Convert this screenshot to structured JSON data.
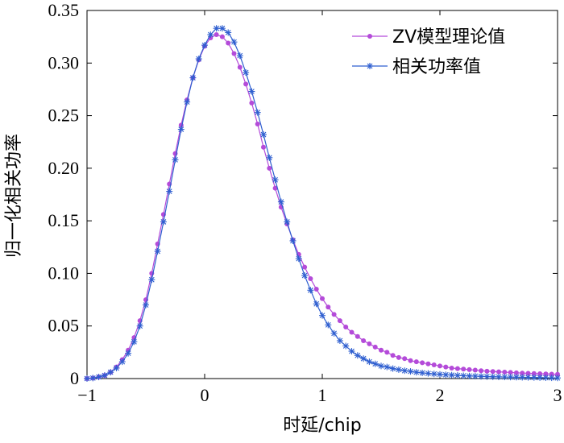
{
  "chart_data": {
    "type": "line",
    "xlabel": "时延/chip",
    "ylabel": "归一化相关功率",
    "xlim": [
      -1,
      3
    ],
    "ylim": [
      0,
      0.35
    ],
    "xticks": [
      -1,
      0,
      1,
      2,
      3
    ],
    "xtick_labels": [
      "−1",
      "0",
      "1",
      "2",
      "3"
    ],
    "yticks": [
      0,
      0.05,
      0.1,
      0.15,
      0.2,
      0.25,
      0.3,
      0.35
    ],
    "ytick_labels": [
      "0",
      "0.05",
      "0.10",
      "0.15",
      "0.20",
      "0.25",
      "0.30",
      "0.35"
    ],
    "grid": false,
    "legend_position": "top-right",
    "series": [
      {
        "name": "ZV模型理论值",
        "color": "#b44bd9",
        "marker": "dot",
        "x": [
          -1.0,
          -0.95,
          -0.9,
          -0.85,
          -0.8,
          -0.75,
          -0.7,
          -0.65,
          -0.6,
          -0.55,
          -0.5,
          -0.45,
          -0.4,
          -0.35,
          -0.3,
          -0.25,
          -0.2,
          -0.15,
          -0.1,
          -0.05,
          0.0,
          0.05,
          0.1,
          0.15,
          0.2,
          0.25,
          0.3,
          0.35,
          0.4,
          0.45,
          0.5,
          0.55,
          0.6,
          0.65,
          0.7,
          0.75,
          0.8,
          0.85,
          0.9,
          0.95,
          1.0,
          1.05,
          1.1,
          1.15,
          1.2,
          1.25,
          1.3,
          1.35,
          1.4,
          1.45,
          1.5,
          1.55,
          1.6,
          1.65,
          1.7,
          1.75,
          1.8,
          1.85,
          1.9,
          1.95,
          2.0,
          2.05,
          2.1,
          2.15,
          2.2,
          2.25,
          2.3,
          2.35,
          2.4,
          2.45,
          2.5,
          2.55,
          2.6,
          2.65,
          2.7,
          2.75,
          2.8,
          2.85,
          2.9,
          2.95,
          3.0
        ],
        "y": [
          0.0,
          0.0005,
          0.0015,
          0.003,
          0.006,
          0.011,
          0.018,
          0.027,
          0.039,
          0.055,
          0.075,
          0.1,
          0.128,
          0.156,
          0.185,
          0.214,
          0.241,
          0.265,
          0.286,
          0.303,
          0.316,
          0.324,
          0.327,
          0.325,
          0.319,
          0.309,
          0.296,
          0.28,
          0.262,
          0.242,
          0.22,
          0.2,
          0.181,
          0.163,
          0.147,
          0.132,
          0.118,
          0.106,
          0.095,
          0.085,
          0.076,
          0.068,
          0.061,
          0.055,
          0.049,
          0.044,
          0.04,
          0.036,
          0.033,
          0.03,
          0.027,
          0.025,
          0.022,
          0.02,
          0.019,
          0.017,
          0.016,
          0.015,
          0.014,
          0.013,
          0.012,
          0.011,
          0.01,
          0.0095,
          0.009,
          0.0085,
          0.008,
          0.0075,
          0.007,
          0.0067,
          0.0064,
          0.0061,
          0.0058,
          0.0055,
          0.0052,
          0.005,
          0.0048,
          0.0046,
          0.0044,
          0.0042,
          0.004
        ]
      },
      {
        "name": "相关功率值",
        "color": "#2f5fd0",
        "marker": "star",
        "x": [
          -1.0,
          -0.95,
          -0.9,
          -0.85,
          -0.8,
          -0.75,
          -0.7,
          -0.65,
          -0.6,
          -0.55,
          -0.5,
          -0.45,
          -0.4,
          -0.35,
          -0.3,
          -0.25,
          -0.2,
          -0.15,
          -0.1,
          -0.05,
          0.0,
          0.05,
          0.1,
          0.15,
          0.2,
          0.25,
          0.3,
          0.35,
          0.4,
          0.45,
          0.5,
          0.55,
          0.6,
          0.65,
          0.7,
          0.75,
          0.8,
          0.85,
          0.9,
          0.95,
          1.0,
          1.05,
          1.1,
          1.15,
          1.2,
          1.25,
          1.3,
          1.35,
          1.4,
          1.45,
          1.5,
          1.55,
          1.6,
          1.65,
          1.7,
          1.75,
          1.8,
          1.85,
          1.9,
          1.95,
          2.0,
          2.05,
          2.1,
          2.15,
          2.2,
          2.25,
          2.3,
          2.35,
          2.4,
          2.45,
          2.5,
          2.55,
          2.6,
          2.65,
          2.7,
          2.75,
          2.8,
          2.85,
          2.9,
          2.95,
          3.0
        ],
        "y": [
          0.0,
          0.0005,
          0.0015,
          0.003,
          0.006,
          0.01,
          0.016,
          0.024,
          0.035,
          0.05,
          0.07,
          0.094,
          0.121,
          0.149,
          0.178,
          0.208,
          0.237,
          0.263,
          0.286,
          0.304,
          0.317,
          0.327,
          0.333,
          0.333,
          0.329,
          0.32,
          0.307,
          0.291,
          0.273,
          0.253,
          0.232,
          0.21,
          0.189,
          0.168,
          0.149,
          0.131,
          0.114,
          0.098,
          0.084,
          0.071,
          0.06,
          0.051,
          0.043,
          0.036,
          0.031,
          0.026,
          0.022,
          0.019,
          0.016,
          0.014,
          0.012,
          0.011,
          0.0095,
          0.0085,
          0.0075,
          0.0068,
          0.006,
          0.0054,
          0.0049,
          0.0044,
          0.004,
          0.0036,
          0.0033,
          0.003,
          0.0027,
          0.0025,
          0.0023,
          0.0021,
          0.0019,
          0.0017,
          0.0016,
          0.0015,
          0.0014,
          0.0013,
          0.0012,
          0.0011,
          0.001,
          0.0009,
          0.0008,
          0.0007,
          0.0006
        ]
      }
    ]
  }
}
